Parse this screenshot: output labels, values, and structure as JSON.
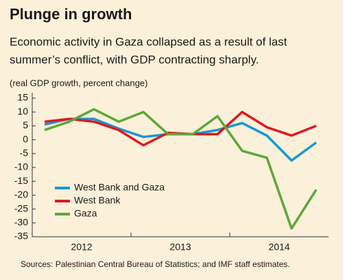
{
  "chart_data": {
    "type": "line",
    "title": "Plunge in growth",
    "subtitle": [
      "Economic activity in Gaza collapsed as a result of last",
      "summer’s conflict, with GDP contracting sharply."
    ],
    "y_label": "(real GDP growth, percent change)",
    "source": "Sources: Palestinian Central Bureau of Statistics; and IMF staff estimates.",
    "categories": [
      "2012",
      null,
      null,
      null,
      "2013",
      null,
      null,
      null,
      "2014",
      null,
      null,
      null
    ],
    "series": [
      {
        "name": "West Bank and Gaza",
        "color": "#1b97d3",
        "values": [
          5.5,
          7.5,
          7.5,
          4,
          1,
          2,
          2,
          3.5,
          6,
          1.5,
          -7.5,
          -1
        ]
      },
      {
        "name": "West Bank",
        "color": "#dd1a21",
        "values": [
          6.5,
          7.5,
          6.5,
          3.5,
          -2,
          2.5,
          2,
          2,
          10,
          4.5,
          1.5,
          5
        ]
      },
      {
        "name": "Gaza",
        "color": "#5ba83a",
        "values": [
          3.5,
          6.5,
          11,
          6.5,
          10,
          2,
          2,
          8.5,
          -4,
          -6.5,
          -32,
          -18
        ]
      }
    ],
    "ylim": [
      -35,
      15
    ],
    "yticks": [
      15,
      10,
      5,
      0,
      -5,
      -10,
      -15,
      -20,
      -25,
      -30,
      -35
    ],
    "legend": "lower-left"
  }
}
